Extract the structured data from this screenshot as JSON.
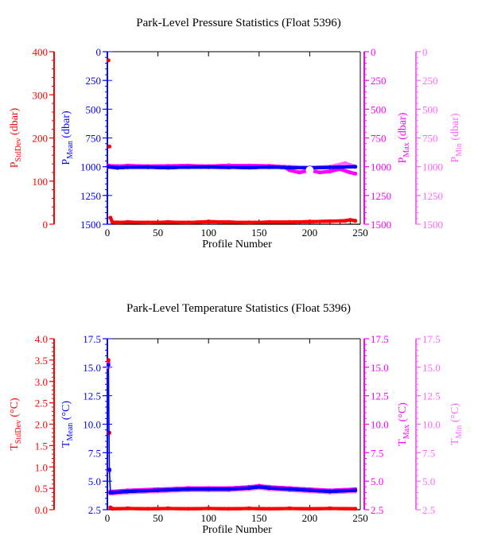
{
  "colors": {
    "stddev": "#ff0000",
    "mean": "#0000ff",
    "max": "#ff00ff",
    "min": "#ff66ff",
    "frame": "#000000"
  },
  "chart_data": [
    {
      "type": "scatter",
      "title": "Park-Level Pressure Statistics (Float 5396)",
      "xlabel": "Profile Number",
      "xlim": [
        0,
        250
      ],
      "x_ticks": [
        0,
        50,
        100,
        150,
        200,
        250
      ],
      "axes": {
        "stddev": {
          "symbol": "P",
          "subscript": "StdDev",
          "unit": "(dbar)",
          "ylim": [
            0,
            400
          ],
          "inverted": false,
          "ticks": [
            0,
            100,
            200,
            300,
            400
          ],
          "minor_step": 20
        },
        "mean": {
          "symbol": "P",
          "subscript": "Mean",
          "unit": "(dbar)",
          "ylim": [
            0,
            1500
          ],
          "inverted": true,
          "ticks": [
            0,
            250,
            500,
            750,
            1000,
            1250,
            1500
          ],
          "minor_step": 50
        },
        "max": {
          "symbol": "P",
          "subscript": "Max",
          "unit": "(dbar)",
          "ylim": [
            0,
            1500
          ],
          "inverted": true,
          "ticks": [
            0,
            250,
            500,
            750,
            1000,
            1250,
            1500
          ],
          "minor_step": 50
        },
        "min": {
          "symbol": "P",
          "subscript": "Min",
          "unit": "(dbar)",
          "ylim": [
            0,
            1500
          ],
          "inverted": true,
          "ticks": [
            0,
            250,
            500,
            750,
            1000,
            1250,
            1500
          ],
          "minor_step": 50
        }
      },
      "series": [
        {
          "axis": "stddev",
          "style": "points",
          "x": [
            1,
            2,
            3,
            5,
            10,
            20,
            40,
            60,
            80,
            100,
            120,
            140,
            160,
            180,
            200,
            220,
            235,
            240,
            245
          ],
          "y": [
            380,
            180,
            15,
            5,
            4,
            5,
            4,
            5,
            4,
            6,
            5,
            4,
            5,
            5,
            6,
            7,
            8,
            10,
            8
          ]
        },
        {
          "axis": "mean",
          "style": "line",
          "x": [
            1,
            10,
            20,
            40,
            60,
            80,
            100,
            120,
            140,
            160,
            180,
            200,
            220,
            245
          ],
          "y": [
            1000,
            1010,
            1005,
            1005,
            1008,
            1004,
            1003,
            1005,
            1008,
            1004,
            1008,
            1010,
            1006,
            1000
          ]
        },
        {
          "axis": "max",
          "style": "points",
          "x": [
            1,
            10,
            20,
            40,
            60,
            80,
            100,
            120,
            140,
            160,
            175,
            180,
            190,
            200,
            210,
            220,
            230,
            240,
            245
          ],
          "y": [
            990,
            995,
            990,
            995,
            992,
            990,
            995,
            988,
            990,
            992,
            1000,
            1030,
            1050,
            1030,
            1050,
            1040,
            1020,
            1050,
            1060
          ]
        },
        {
          "axis": "min",
          "style": "points",
          "x": [
            1,
            10,
            20,
            40,
            60,
            80,
            100,
            120,
            140,
            160,
            180,
            200,
            220,
            235,
            240,
            245
          ],
          "y": [
            1005,
            1010,
            1000,
            1005,
            1010,
            1000,
            1005,
            1008,
            995,
            1005,
            1000,
            1005,
            1000,
            970,
            985,
            1000
          ]
        }
      ],
      "open_markers": [
        {
          "axis": "mean",
          "x": [
            200
          ],
          "y": [
            1030
          ]
        }
      ]
    },
    {
      "type": "scatter",
      "title": "Park-Level Temperature Statistics (Float 5396)",
      "xlabel": "Profile Number",
      "xlim": [
        0,
        250
      ],
      "x_ticks": [
        0,
        50,
        100,
        150,
        200,
        250
      ],
      "axes": {
        "stddev": {
          "symbol": "T",
          "subscript": "StdDev",
          "unit": "(°C)",
          "ylim": [
            0,
            4
          ],
          "inverted": false,
          "ticks": [
            0.0,
            0.5,
            1.0,
            1.5,
            2.0,
            2.5,
            3.0,
            3.5,
            4.0
          ],
          "tick_labels": [
            "0.0",
            "0.5",
            "1.0",
            "1.5",
            "2.0",
            "2.5",
            "3.0",
            "3.5",
            "4.0"
          ],
          "minor_step": 0.1
        },
        "mean": {
          "symbol": "T",
          "subscript": "Mean",
          "unit": "(°C)",
          "ylim": [
            2.5,
            17.5
          ],
          "inverted": false,
          "ticks": [
            2.5,
            5.0,
            7.5,
            10.0,
            12.5,
            15.0,
            17.5
          ],
          "tick_labels": [
            "2.5",
            "5.0",
            "7.5",
            "10.0",
            "12.5",
            "15.0",
            "17.5"
          ],
          "minor_step": 0.5
        },
        "max": {
          "symbol": "T",
          "subscript": "Max",
          "unit": "(°C)",
          "ylim": [
            2.5,
            17.5
          ],
          "inverted": false,
          "ticks": [
            2.5,
            5.0,
            7.5,
            10.0,
            12.5,
            15.0,
            17.5
          ],
          "tick_labels": [
            "2.5",
            "5.0",
            "7.5",
            "10.0",
            "12.5",
            "15.0",
            "17.5"
          ],
          "minor_step": 0.5
        },
        "min": {
          "symbol": "T",
          "subscript": "Min",
          "unit": "(°C)",
          "ylim": [
            2.5,
            17.5
          ],
          "inverted": false,
          "ticks": [
            2.5,
            5.0,
            7.5,
            10.0,
            12.5,
            15.0,
            17.5
          ],
          "tick_labels": [
            "2.5",
            "5.0",
            "7.5",
            "10.0",
            "12.5",
            "15.0",
            "17.5"
          ],
          "minor_step": 0.5
        }
      },
      "series": [
        {
          "axis": "stddev",
          "style": "points",
          "x": [
            1,
            2,
            3,
            5,
            20,
            40,
            60,
            80,
            100,
            120,
            140,
            160,
            180,
            200,
            220,
            245
          ],
          "y": [
            3.5,
            1.8,
            0.05,
            0.02,
            0.03,
            0.02,
            0.03,
            0.02,
            0.03,
            0.02,
            0.03,
            0.02,
            0.03,
            0.02,
            0.03,
            0.02
          ]
        },
        {
          "axis": "mean",
          "style": "line",
          "x": [
            1,
            2,
            3,
            5,
            20,
            50,
            80,
            100,
            120,
            140,
            150,
            160,
            180,
            200,
            220,
            245
          ],
          "y": [
            15.2,
            6.0,
            4.0,
            4.0,
            4.1,
            4.2,
            4.3,
            4.3,
            4.3,
            4.4,
            4.5,
            4.4,
            4.3,
            4.2,
            4.1,
            4.2
          ]
        },
        {
          "axis": "max",
          "style": "points",
          "x": [
            1,
            2,
            3,
            5,
            20,
            50,
            80,
            100,
            120,
            140,
            150,
            160,
            180,
            200,
            220,
            245
          ],
          "y": [
            15.4,
            6.0,
            4.1,
            4.1,
            4.2,
            4.3,
            4.4,
            4.4,
            4.4,
            4.5,
            4.6,
            4.5,
            4.4,
            4.3,
            4.2,
            4.3
          ]
        },
        {
          "axis": "min",
          "style": "points",
          "x": [
            1,
            2,
            3,
            5,
            20,
            50,
            80,
            100,
            120,
            140,
            150,
            160,
            180,
            200,
            220,
            245
          ],
          "y": [
            15.0,
            5.9,
            3.9,
            3.9,
            4.0,
            4.1,
            4.2,
            4.2,
            4.2,
            4.3,
            4.4,
            4.3,
            4.2,
            4.1,
            4.0,
            4.1
          ]
        }
      ]
    }
  ]
}
